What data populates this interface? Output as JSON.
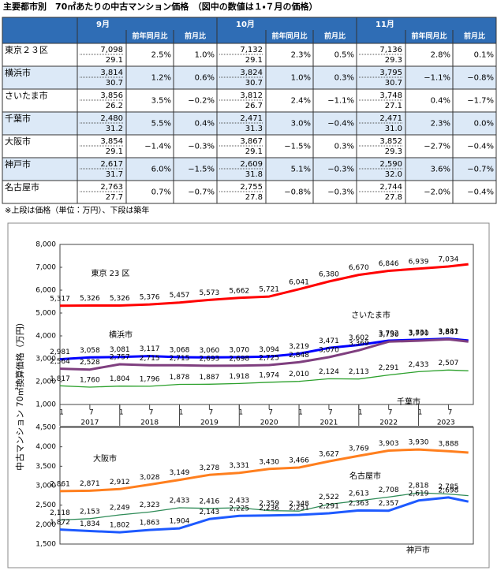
{
  "title": "主要都市別　70㎡あたりの中古マンション価格　（図中の数値は１・７月の価格）",
  "table": {
    "months": [
      "9月",
      "10月",
      "11月"
    ],
    "subheaders": [
      "前年同月比",
      "前月比"
    ],
    "rows": [
      [
        "東京２３区",
        "7,098",
        "29.1",
        "2.5%",
        "1.0%",
        "7,132",
        "29.1",
        "2.3%",
        "0.5%",
        "7,136",
        "29.3",
        "2.8%",
        "0.1%"
      ],
      [
        "横浜市",
        "3,814",
        "30.7",
        "1.2%",
        "0.6%",
        "3,824",
        "30.7",
        "1.0%",
        "0.3%",
        "3,795",
        "30.7",
        "−1.1%",
        "−0.8%"
      ],
      [
        "さいたま市",
        "3,856",
        "26.2",
        "3.5%",
        "−0.2%",
        "3,812",
        "26.7",
        "2.4%",
        "−1.1%",
        "3,748",
        "27.1",
        "0.4%",
        "−1.7%"
      ],
      [
        "千葉市",
        "2,480",
        "31.2",
        "5.5%",
        "0.4%",
        "2,471",
        "31.3",
        "3.0%",
        "−0.4%",
        "2,471",
        "31.0",
        "2.3%",
        "0.0%"
      ],
      [
        "大阪市",
        "3,854",
        "29.1",
        "−1.4%",
        "−0.3%",
        "3,867",
        "29.1",
        "−1.5%",
        "0.3%",
        "3,852",
        "29.3",
        "−2.7%",
        "−0.4%"
      ],
      [
        "神戸市",
        "2,617",
        "31.7",
        "6.0%",
        "−1.5%",
        "2,609",
        "31.8",
        "5.1%",
        "−0.3%",
        "2,590",
        "32.0",
        "3.6%",
        "−0.7%"
      ],
      [
        "名古屋市",
        "2,763",
        "27.7",
        "0.7%",
        "−0.7%",
        "2,755",
        "27.8",
        "−0.8%",
        "−0.3%",
        "2,744",
        "27.8",
        "−2.0%",
        "−0.4%"
      ]
    ]
  },
  "note": "※上段は価格（単位：万円）、下段は築年",
  "chart_data": [
    {
      "type": "line",
      "y_label": "中古マンション 70㎡換算価格（万円）",
      "x": [
        "2017-01",
        "2017-07",
        "2018-01",
        "2018-07",
        "2019-01",
        "2019-07",
        "2020-01",
        "2020-07",
        "2021-01",
        "2021-07",
        "2022-01",
        "2022-07",
        "2023-01",
        "2023-07",
        "2023-11"
      ],
      "xlim": [
        "2017-01",
        "2023-12"
      ],
      "xticks": [
        {
          "value": "2017-01",
          "label": "1"
        },
        {
          "value": "2017-07",
          "label": "7"
        },
        {
          "value": "2018-01",
          "label": "1"
        },
        {
          "value": "2018-07",
          "label": "7"
        },
        {
          "value": "2019-01",
          "label": "1"
        },
        {
          "value": "2019-07",
          "label": "7"
        },
        {
          "value": "2020-01",
          "label": "1"
        },
        {
          "value": "2020-07",
          "label": "7"
        },
        {
          "value": "2021-01",
          "label": "1"
        },
        {
          "value": "2021-07",
          "label": "7"
        },
        {
          "value": "2022-01",
          "label": "1"
        },
        {
          "value": "2022-07",
          "label": "7"
        },
        {
          "value": "2023-01",
          "label": "1"
        },
        {
          "value": "2023-07",
          "label": "7"
        }
      ],
      "x_groups": [
        "2017",
        "2018",
        "2019",
        "2020",
        "2021",
        "2022",
        "2023"
      ],
      "ylim": [
        1000,
        8000
      ],
      "yticks": [
        {
          "value": 1000,
          "label": "1,000"
        },
        {
          "value": 2000,
          "label": "2,000"
        },
        {
          "value": 3000,
          "label": "3,000"
        },
        {
          "value": 4000,
          "label": "4,000"
        },
        {
          "value": 5000,
          "label": "5,000"
        },
        {
          "value": 6000,
          "label": "6,000"
        },
        {
          "value": 7000,
          "label": "7,000"
        },
        {
          "value": 8000,
          "label": "8,000"
        }
      ],
      "grid": false,
      "series": [
        {
          "name": "東京 23 区",
          "color": "#ff0000",
          "values": [
            5317,
            5326,
            5326,
            5376,
            5457,
            5573,
            5662,
            5721,
            6041,
            6380,
            6670,
            6846,
            6939,
            7034,
            7136
          ],
          "value_labels": [
            "5,317",
            "5,326",
            "5,326",
            "5,376",
            "5,457",
            "5,573",
            "5,662",
            "5,721",
            "6,041",
            "6,380",
            "6,670",
            "6,846",
            "6,939",
            "7,034",
            null
          ]
        },
        {
          "name": "横浜市",
          "color": "#0000ff",
          "values": [
            2981,
            3058,
            3081,
            3117,
            3068,
            3060,
            3070,
            3094,
            3219,
            3471,
            3602,
            3792,
            3831,
            3881,
            3795
          ],
          "value_labels": [
            "2,981",
            "3,058",
            "3,081",
            "3,117",
            "3,068",
            "3,060",
            "3,070",
            "3,094",
            "3,219",
            "3,471",
            "3,602",
            "3,792",
            "3,831",
            "3,881",
            null
          ]
        },
        {
          "name": "さいたま市",
          "color": "#7f3f7f",
          "values": [
            2564,
            2528,
            2757,
            2715,
            2715,
            2693,
            2698,
            2725,
            2848,
            3070,
            3369,
            3750,
            3790,
            3847,
            3748
          ],
          "value_labels": [
            "2,564",
            "2,528",
            "2,757",
            "2,715",
            "2,715",
            "2,693",
            "2,698",
            "2,725",
            "2,848",
            "3,070",
            "3,369",
            "3,750",
            "3,790",
            "3,847",
            null
          ]
        },
        {
          "name": "千葉市",
          "color": "#2ca02c",
          "values": [
            1817,
            1760,
            1804,
            1796,
            1878,
            1887,
            1918,
            1974,
            2010,
            2124,
            2113,
            2291,
            2433,
            2507,
            2471
          ],
          "value_labels": [
            "1,817",
            "1,760",
            "1,804",
            "1,796",
            "1,878",
            "1,887",
            "1,918",
            "1,974",
            "2,010",
            "2,124",
            "2,113",
            "2,291",
            "2,433",
            "2,507",
            null
          ]
        }
      ]
    },
    {
      "type": "line",
      "x": [
        "2017-01",
        "2017-07",
        "2018-01",
        "2018-07",
        "2019-01",
        "2019-07",
        "2020-01",
        "2020-07",
        "2021-01",
        "2021-07",
        "2022-01",
        "2022-07",
        "2023-01",
        "2023-07",
        "2023-11"
      ],
      "xlim": [
        "2017-01",
        "2023-12"
      ],
      "ylim": [
        1500,
        4500
      ],
      "yticks": [
        {
          "value": 1500,
          "label": "1,500"
        },
        {
          "value": 2000,
          "label": "2,000"
        },
        {
          "value": 2500,
          "label": "2,500"
        },
        {
          "value": 3000,
          "label": "3,000"
        },
        {
          "value": 3500,
          "label": "3,500"
        },
        {
          "value": 4000,
          "label": "4,000"
        },
        {
          "value": 4500,
          "label": "4,500"
        }
      ],
      "grid": false,
      "series": [
        {
          "name": "大阪市",
          "color": "#ff7f1e",
          "values": [
            2861,
            2871,
            2912,
            3028,
            3149,
            3278,
            3331,
            3430,
            3466,
            3627,
            3769,
            3903,
            3930,
            3888,
            3852
          ],
          "value_labels": [
            "2,861",
            "2,871",
            "2,912",
            "3,028",
            "3,149",
            "3,278",
            "3,331",
            "3,430",
            "3,466",
            "3,627",
            "3,769",
            "3,903",
            "3,930",
            "3,888",
            null
          ]
        },
        {
          "name": "名古屋市",
          "color": "#2e8b57",
          "values": [
            2118,
            2153,
            2249,
            2323,
            2433,
            2416,
            2433,
            2359,
            2348,
            2522,
            2613,
            2708,
            2818,
            2785,
            2744
          ],
          "value_labels": [
            "2,118",
            "2,153",
            "2,249",
            "2,323",
            "2,433",
            "2,416",
            "2,433",
            "2,359",
            "2,348",
            "2,522",
            "2,613",
            "2,708",
            "2,818",
            "2,785",
            null
          ]
        },
        {
          "name": "神戸市",
          "color": "#1e5aff",
          "values": [
            1872,
            1834,
            1802,
            1863,
            1904,
            2143,
            2225,
            2236,
            2251,
            2291,
            2363,
            2357,
            2619,
            2698,
            2590
          ],
          "value_labels": [
            "1,872",
            "1,834",
            "1,802",
            "1,863",
            "1,904",
            "2,143",
            "2,225",
            "2,236",
            "2,251",
            "2,291",
            "2,363",
            "2,357",
            "2,619",
            "2,698",
            null
          ]
        }
      ]
    }
  ]
}
